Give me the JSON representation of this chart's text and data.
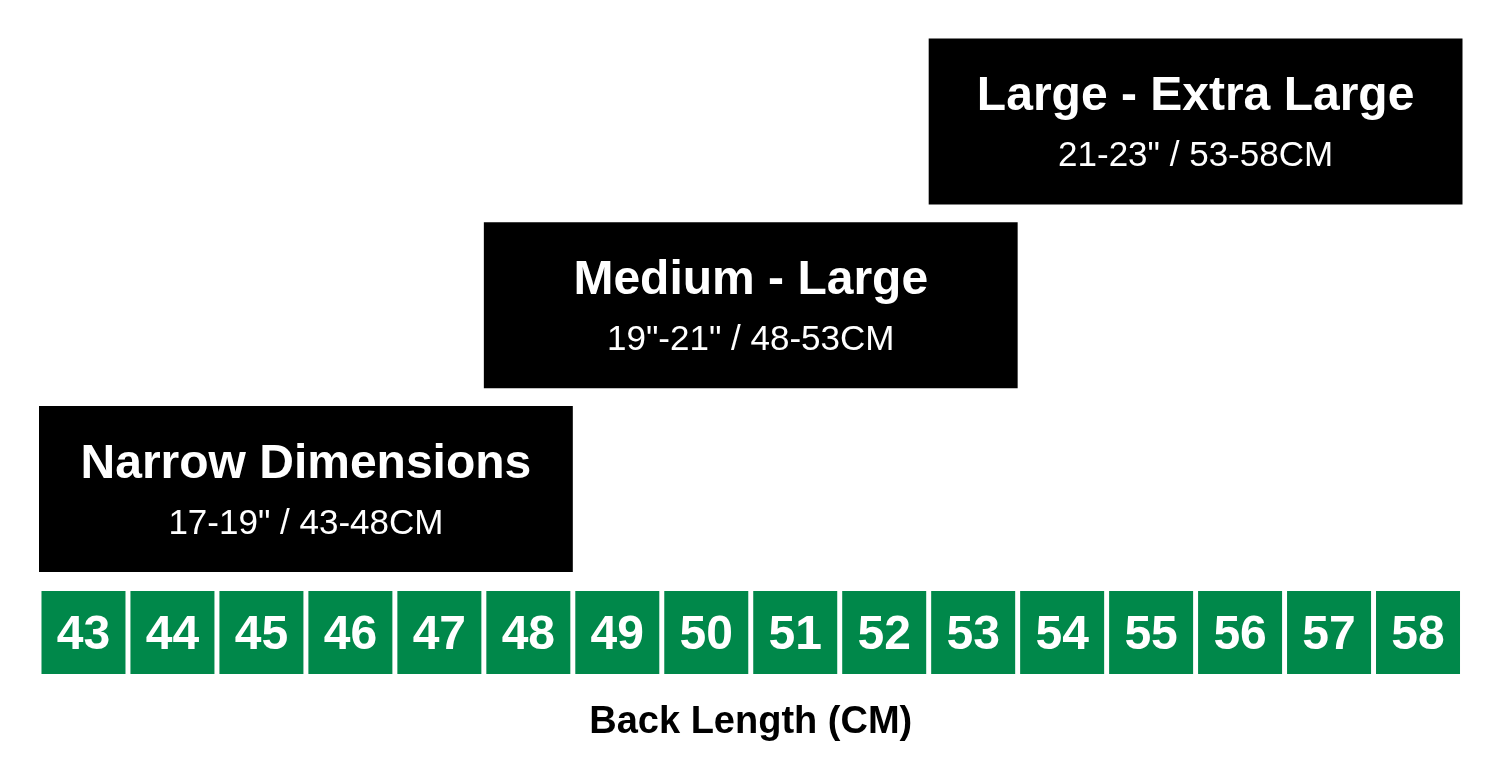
{
  "chart_data": {
    "type": "bar",
    "orientation": "horizontal",
    "xlabel": "Back Length (CM)",
    "categories": [
      "Large - Extra Large",
      "Medium - Large",
      "Narrow Dimensions"
    ],
    "base": [
      52.5,
      47.5,
      42.5
    ],
    "values": [
      6,
      6,
      6
    ],
    "color": "#000000",
    "annotations": [
      "21-23\" / 53-58CM",
      "19\"-21\" / 48-53CM",
      "17-19\" / 43-48CM"
    ],
    "xlim": [
      42.5,
      58.5
    ],
    "xticks": [
      43,
      44,
      45,
      46,
      47,
      48,
      49,
      50,
      51,
      52,
      53,
      54,
      55,
      56,
      57,
      58
    ],
    "tick_labels": "x"
  }
}
